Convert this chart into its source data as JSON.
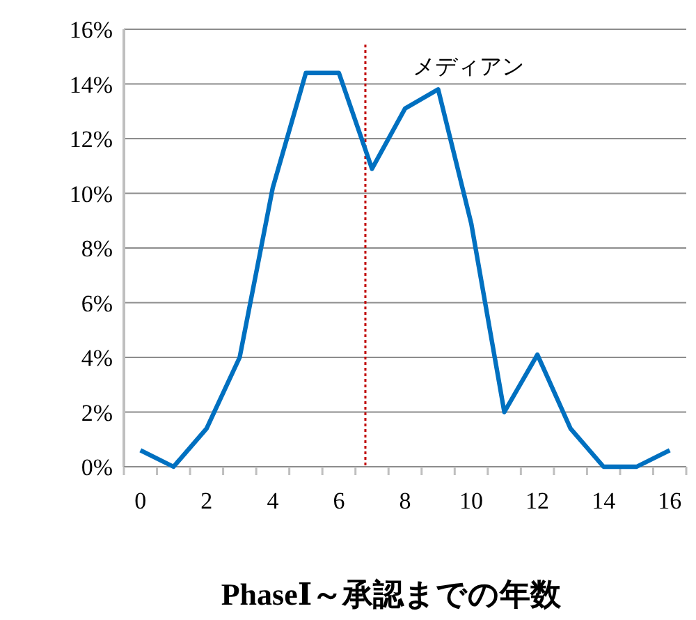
{
  "chart_data": {
    "type": "line",
    "xlabel": "PhaseⅠ～承認までの年数",
    "x": [
      0,
      1,
      2,
      3,
      4,
      5,
      6,
      7,
      8,
      9,
      10,
      11,
      12,
      13,
      14,
      15,
      16
    ],
    "xlim": [
      -0.5,
      16.5
    ],
    "xticks": [
      0,
      2,
      4,
      6,
      8,
      10,
      12,
      14,
      16,
      {
        "value": -0.5,
        "label": null
      },
      {
        "value": 0.5,
        "label": null
      },
      {
        "value": 1.5,
        "label": null
      },
      {
        "value": 2.5,
        "label": null
      },
      {
        "value": 3.5,
        "label": null
      },
      {
        "value": 4.5,
        "label": null
      },
      {
        "value": 5.5,
        "label": null
      },
      {
        "value": 6.5,
        "label": null
      },
      {
        "value": 7.5,
        "label": null
      },
      {
        "value": 8.5,
        "label": null
      },
      {
        "value": 9.5,
        "label": null
      },
      {
        "value": 10.5,
        "label": null
      },
      {
        "value": 11.5,
        "label": null
      },
      {
        "value": 12.5,
        "label": null
      },
      {
        "value": 13.5,
        "label": null
      },
      {
        "value": 14.5,
        "label": null
      },
      {
        "value": 15.5,
        "label": null
      },
      {
        "value": 16.5,
        "label": null
      }
    ],
    "series": [
      {
        "color": "#0070c0",
        "values": [
          0.6,
          0,
          1.4,
          4.0,
          10.2,
          14.4,
          14.4,
          10.9,
          13.1,
          13.8,
          8.9,
          2.0,
          4.1,
          1.4,
          0,
          0,
          0.6
        ]
      }
    ],
    "ylim": [
      0,
      16
    ],
    "yticks": [
      {
        "value": 0,
        "label": "0%"
      },
      {
        "value": 2,
        "label": "2%"
      },
      {
        "value": 4,
        "label": "4%"
      },
      {
        "value": 6,
        "label": "6%"
      },
      {
        "value": 8,
        "label": "8%"
      },
      {
        "value": 10,
        "label": "10%"
      },
      {
        "value": 12,
        "label": "12%"
      },
      {
        "value": 14,
        "label": "14%"
      },
      {
        "value": 16,
        "label": "16%"
      }
    ],
    "grid": "y",
    "marker": "none",
    "line_style": "solid",
    "ref_lines": [
      {
        "axis": "x",
        "value": 6.8,
        "label": "メディアン",
        "color": "#c00000",
        "line_style": "dotted"
      }
    ]
  }
}
